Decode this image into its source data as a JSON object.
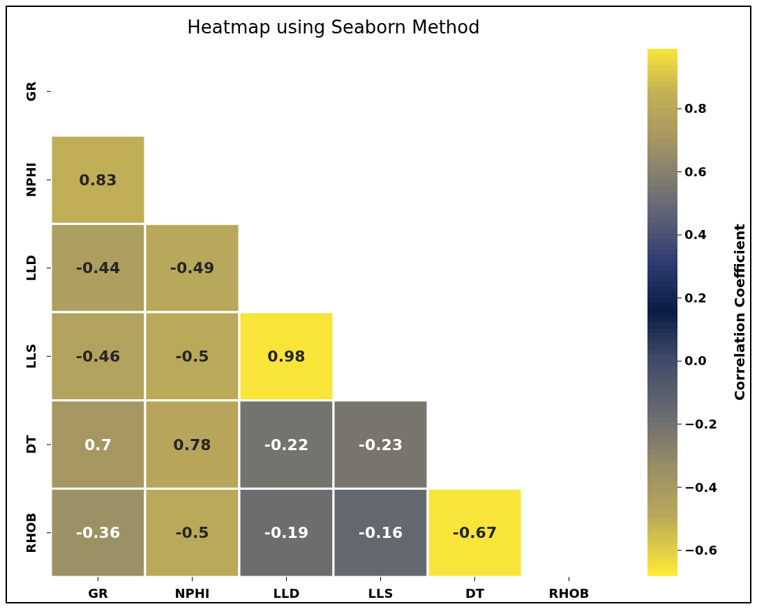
{
  "chart_data": {
    "type": "heatmap",
    "title": "Heatmap using Seaborn Method",
    "clabel": "Correlation Coefficient",
    "categories": [
      "GR",
      "NPHI",
      "LLD",
      "LLS",
      "DT",
      "RHOB"
    ],
    "y_categories": [
      "GR",
      "NPHI",
      "LLD",
      "LLS",
      "DT",
      "RHOB"
    ],
    "cells": [
      [
        null,
        null,
        null,
        null,
        null,
        null
      ],
      [
        0.83,
        null,
        null,
        null,
        null,
        null
      ],
      [
        -0.44,
        -0.49,
        null,
        null,
        null,
        null
      ],
      [
        -0.46,
        -0.5,
        0.98,
        null,
        null,
        null
      ],
      [
        0.7,
        0.78,
        -0.22,
        -0.23,
        null,
        null
      ],
      [
        -0.36,
        -0.5,
        -0.19,
        -0.16,
        -0.67,
        null
      ]
    ],
    "data_labels": true,
    "clim": [
      -0.68,
      0.99
    ],
    "cticks": [
      {
        "value": -0.6,
        "label": "−0.6"
      },
      {
        "value": -0.4,
        "label": "−0.4"
      },
      {
        "value": -0.2,
        "label": "−0.2"
      },
      {
        "value": 0,
        "label": "0.0"
      },
      {
        "value": 0.2,
        "label": "0.2"
      },
      {
        "value": 0.4,
        "label": "0.4"
      },
      {
        "value": 0.6,
        "label": "0.6"
      },
      {
        "value": 0.8,
        "label": "0.8"
      }
    ]
  }
}
